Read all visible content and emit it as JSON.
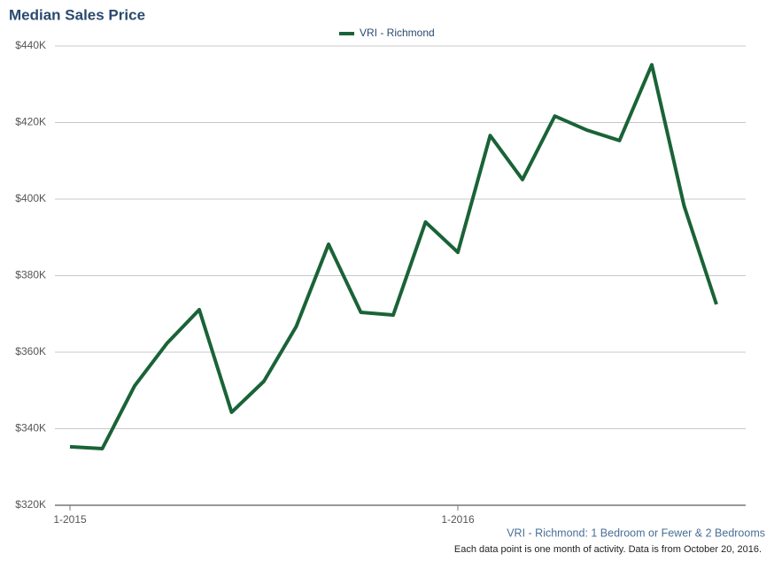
{
  "chart_data": {
    "type": "line",
    "title": "Median Sales Price",
    "categories": [
      "1-2015",
      null,
      null,
      null,
      null,
      null,
      null,
      null,
      null,
      null,
      null,
      null,
      "1-2016",
      null,
      null,
      null,
      null,
      null,
      null,
      null,
      null
    ],
    "series": [
      {
        "name": "VRI - Richmond",
        "color": "#1a6337",
        "values": [
          335300,
          334800,
          351200,
          362300,
          371100,
          344300,
          352400,
          366700,
          388200,
          370400,
          369700,
          394000,
          386100,
          416600,
          405100,
          421700,
          418000,
          415300,
          435100,
          398200,
          372500
        ]
      }
    ],
    "ylim": [
      320000,
      440000
    ],
    "yticks": [
      {
        "value": 320000,
        "label": "$320K"
      },
      {
        "value": 340000,
        "label": "$340K"
      },
      {
        "value": 360000,
        "label": "$360K"
      },
      {
        "value": 380000,
        "label": "$380K"
      },
      {
        "value": 400000,
        "label": "$400K"
      },
      {
        "value": 420000,
        "label": "$420K"
      },
      {
        "value": 440000,
        "label": "$440K"
      }
    ],
    "grid": true,
    "legend": "top",
    "caption": "VRI - Richmond: 1 Bedroom or Fewer & 2 Bedrooms",
    "note": "Each data point is one month of activity. Data is from October 20, 2016."
  }
}
